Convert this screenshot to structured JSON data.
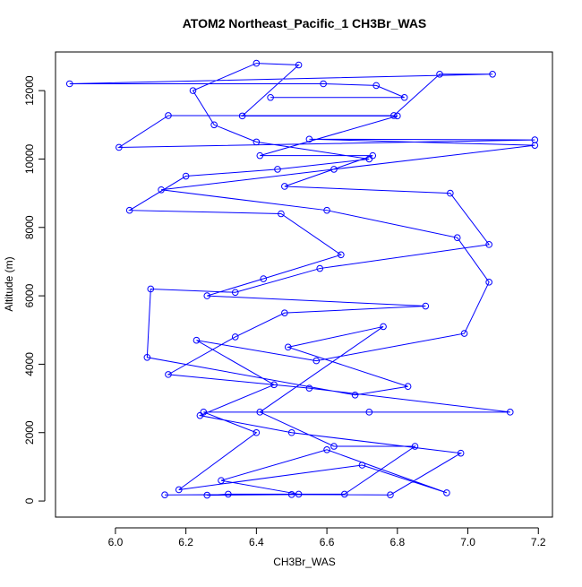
{
  "chart_data": {
    "type": "line",
    "title": "ATOM2 Northeast_Pacific_1 CH3Br_WAS",
    "x_label": "CH3Br_WAS",
    "y_label": "Altitude (m)",
    "series": [
      {
        "color": "#0000ff",
        "x": [
          6.14,
          6.52,
          6.3,
          6.6,
          6.94,
          6.7,
          6.18,
          6.4,
          6.25,
          6.72,
          7.12,
          6.55,
          6.15,
          6.34,
          6.48,
          6.88,
          6.26,
          6.42,
          6.64,
          6.47,
          6.04,
          6.2,
          6.46,
          6.72,
          6.4,
          6.28,
          6.22,
          6.4,
          6.52,
          6.36,
          6.8,
          6.41,
          6.73,
          6.48,
          6.95,
          7.06,
          6.58,
          6.34,
          6.1,
          6.09,
          6.68,
          6.83,
          6.49,
          6.76,
          6.41,
          6.62,
          6.85,
          6.65,
          6.32,
          6.26,
          6.5,
          6.78,
          6.98,
          6.5,
          6.24,
          6.45,
          6.23,
          6.57,
          6.99,
          7.06,
          6.97,
          6.6,
          6.13,
          6.62,
          7.19,
          6.55,
          7.19,
          6.01,
          6.15,
          6.79,
          6.92,
          7.07,
          5.87,
          6.59,
          6.74,
          6.82,
          6.44
        ],
        "values": [
          180,
          200,
          600,
          1500,
          240,
          1050,
          330,
          2000,
          2600,
          2600,
          2600,
          3300,
          3700,
          4800,
          5500,
          5700,
          6000,
          6500,
          7200,
          8400,
          8500,
          9500,
          9700,
          10000,
          10500,
          11000,
          12000,
          12800,
          12750,
          11260,
          11260,
          10100,
          10100,
          9200,
          9000,
          7500,
          6800,
          6100,
          6200,
          4200,
          3100,
          3350,
          4500,
          5100,
          2600,
          1600,
          1600,
          200,
          200,
          170,
          190,
          180,
          1400,
          2000,
          2500,
          3400,
          4700,
          4100,
          4900,
          6400,
          7700,
          8500,
          9100,
          9700,
          10400,
          10580,
          10560,
          10340,
          11270,
          11270,
          12480,
          12480,
          12200,
          12200,
          12150,
          11800,
          11800
        ]
      }
    ],
    "xlim": [
      5.83,
      7.24
    ],
    "ylim": [
      -470,
      13130
    ],
    "xticks": [
      {
        "value": 6,
        "label": "6.0"
      },
      6.2,
      6.4,
      6.6,
      6.8,
      {
        "value": 7,
        "label": "7.0"
      },
      7.2
    ],
    "yticks": [
      0,
      2000,
      4000,
      6000,
      8000,
      10000,
      12000
    ]
  }
}
